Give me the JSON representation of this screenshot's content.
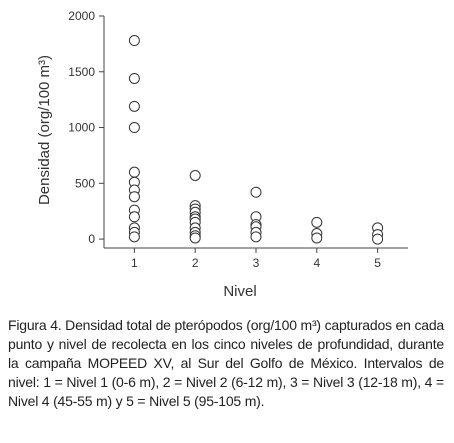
{
  "chart_data": {
    "type": "scatter",
    "xlabel": "Nivel",
    "ylabel": "Densidad (org/100 m³)",
    "x": [
      1,
      1,
      1,
      1,
      1,
      1,
      1,
      1,
      1,
      1,
      1,
      1,
      1,
      2,
      2,
      2,
      2,
      2,
      2,
      2,
      2,
      2,
      2,
      2,
      3,
      3,
      3,
      3,
      3,
      3,
      4,
      4,
      4,
      5,
      5,
      5
    ],
    "values": [
      1780,
      1440,
      1190,
      1000,
      600,
      510,
      440,
      380,
      260,
      200,
      100,
      60,
      20,
      570,
      300,
      270,
      240,
      200,
      180,
      150,
      100,
      60,
      30,
      10,
      420,
      200,
      130,
      110,
      60,
      20,
      150,
      50,
      10,
      100,
      40,
      0
    ],
    "color": "#333333",
    "xlim": [
      0.5,
      5.5
    ],
    "xticks": [
      1,
      2,
      3,
      4,
      5
    ],
    "ylim": [
      -80,
      2000
    ],
    "yticks": [
      0,
      500,
      1000,
      1500,
      2000
    ]
  },
  "caption": "Figura 4. Densidad total de pterópodos (org/100 m³) capturados en cada punto y nivel de recolecta en los cinco niveles de profundidad, durante la campaña MOPEED XV, al Sur del Golfo de México. Intervalos de nivel: 1 = Nivel 1 (0-6 m), 2 = Nivel 2 (6-12 m), 3 = Nivel 3 (12-18 m), 4 = Nivel 4 (45-55 m) y 5 = Nivel 5 (95-105 m)."
}
